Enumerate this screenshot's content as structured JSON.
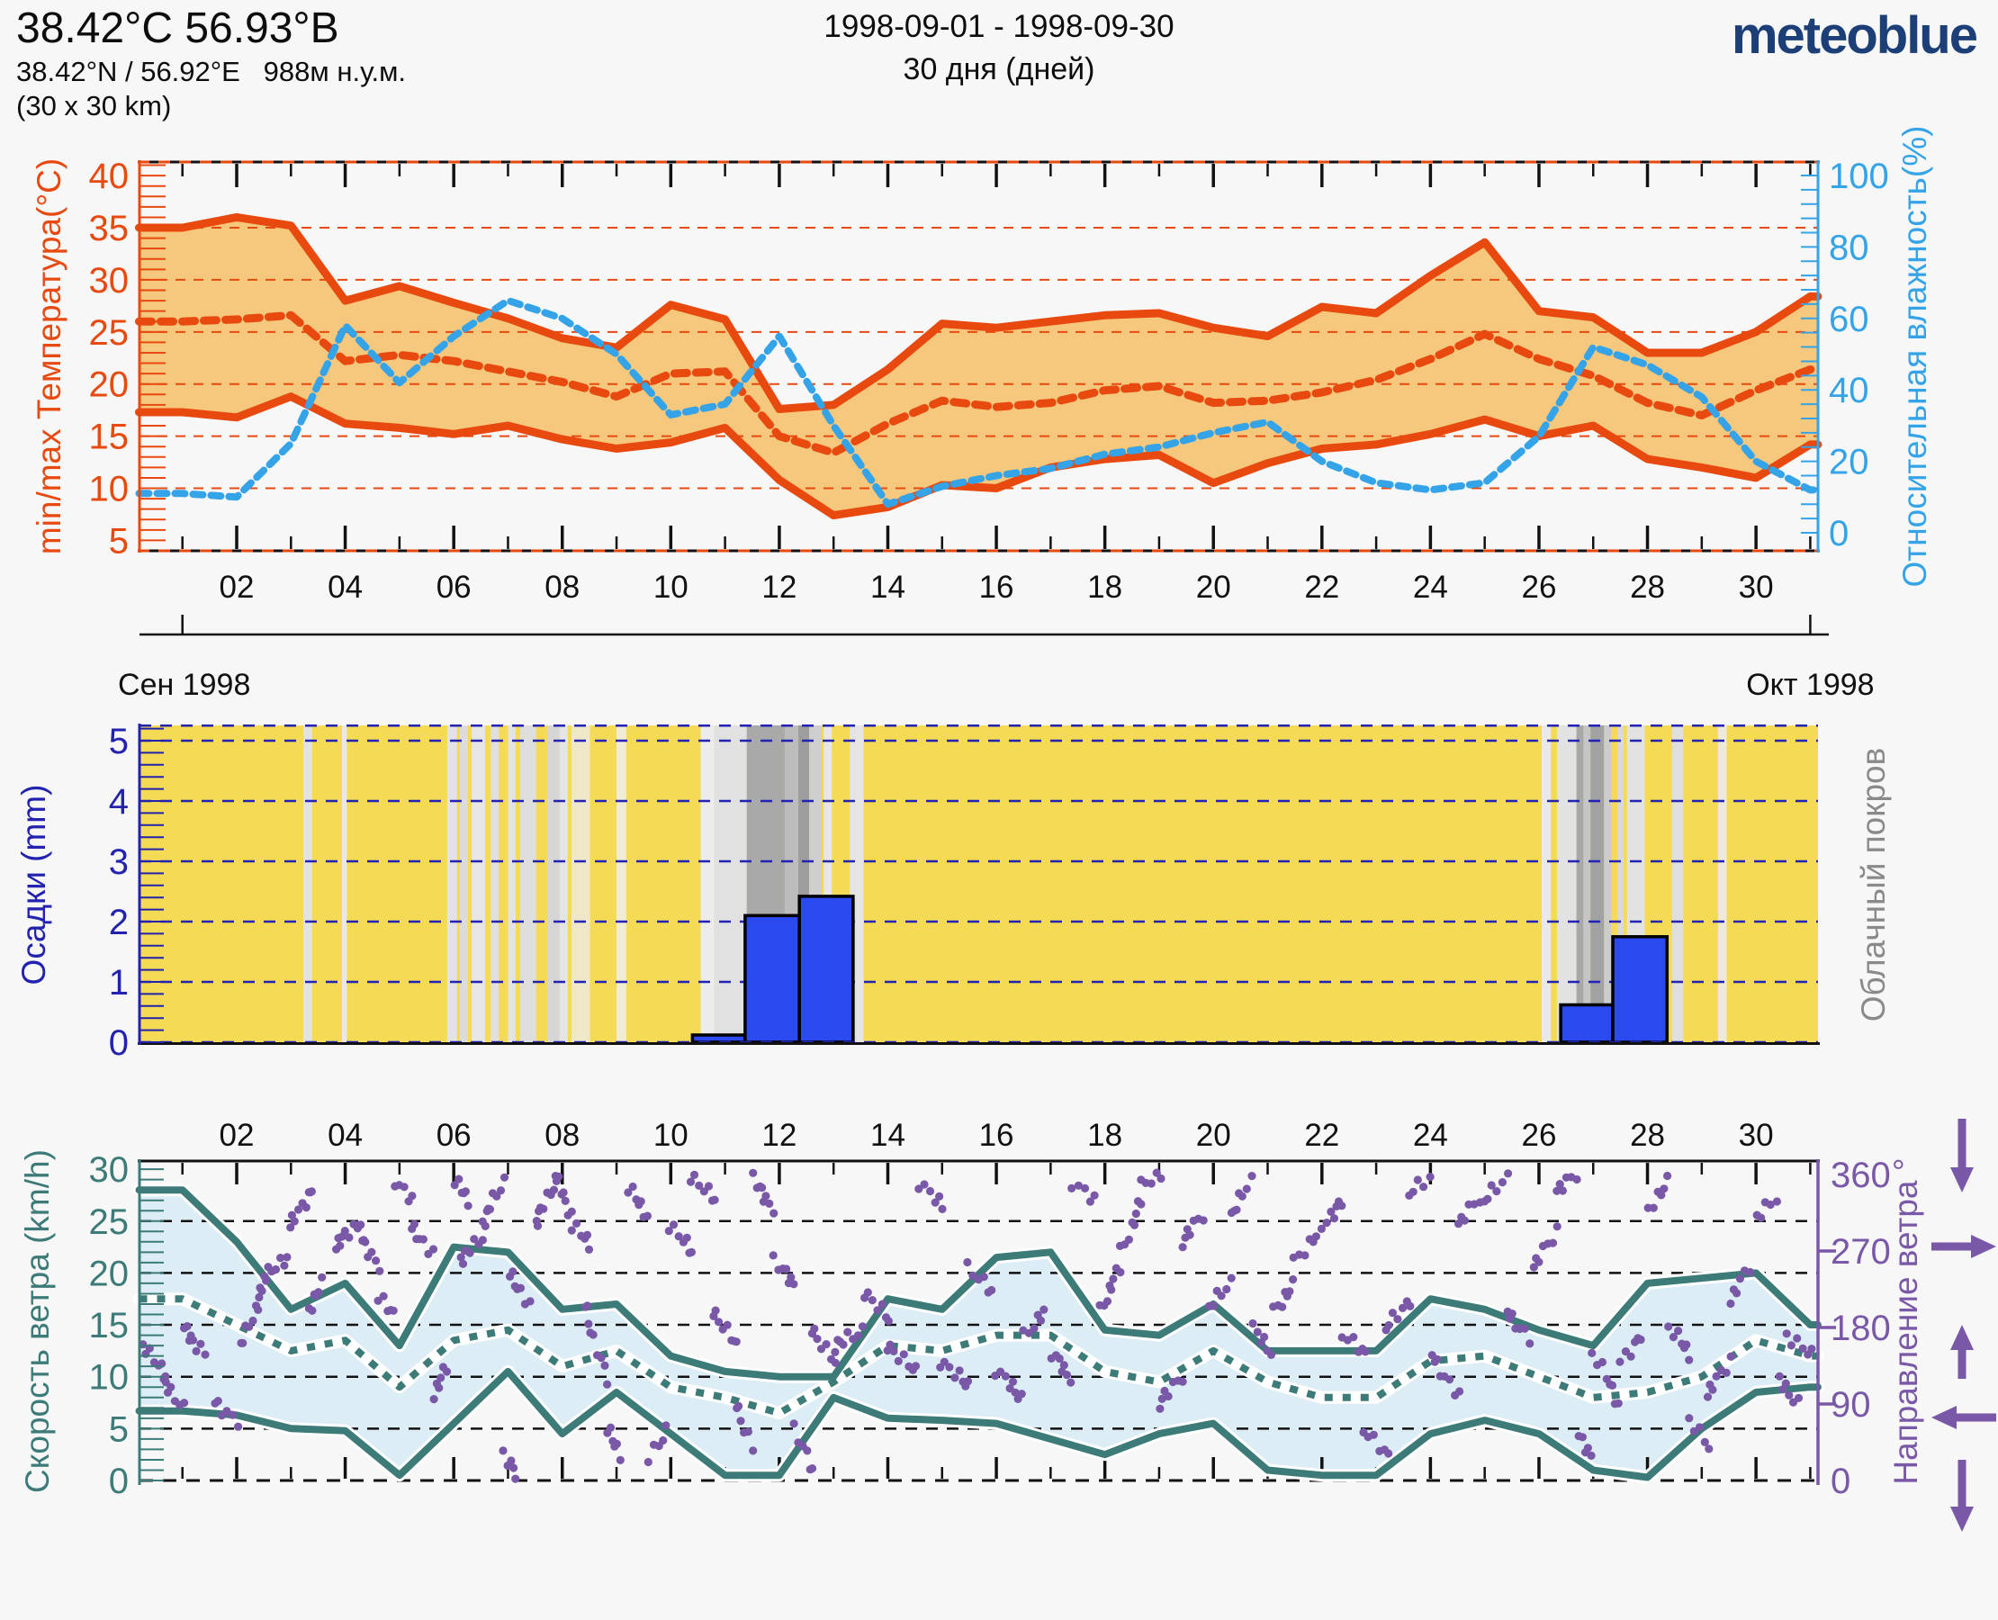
{
  "header": {
    "title": "38.42°C 56.93°B",
    "subtitle": "38.42°N / 56.92°E   988м н.у.м.",
    "area": "(30 x 30 km)",
    "date_range": "1998-09-01 - 1998-09-30",
    "duration": "30 дня (дней)",
    "logo": "meteoblue"
  },
  "colors": {
    "background": "#f7f7f7",
    "temperature": "#e8490f",
    "temperature_fill": "#f6c87d",
    "humidity": "#35a3e8",
    "precipitation_bar": "#2b4af0",
    "precipitation_axis": "#2222ae",
    "cloud_background": "#f5da55",
    "cloud_label": "#8a8a8a",
    "wind": "#3d7b78",
    "wind_fill": "#ddedf6",
    "wind_direction": "#7a58a8",
    "axis_black": "#111111",
    "logo_blue": "#1d3f77"
  },
  "x_axis": {
    "tick_days": [
      2,
      4,
      6,
      8,
      10,
      12,
      14,
      16,
      18,
      20,
      22,
      24,
      26,
      28,
      30
    ],
    "day_labels": [
      "02",
      "04",
      "06",
      "08",
      "10",
      "12",
      "14",
      "16",
      "18",
      "20",
      "22",
      "24",
      "26",
      "28",
      "30"
    ],
    "month_start": "Сен 1998",
    "month_end": "Окт 1998"
  },
  "chart_data": [
    {
      "type": "area",
      "title": "min/max temperature and relative humidity",
      "x": [
        1,
        2,
        3,
        4,
        5,
        6,
        7,
        8,
        9,
        10,
        11,
        12,
        13,
        14,
        15,
        16,
        17,
        18,
        19,
        20,
        21,
        22,
        23,
        24,
        25,
        26,
        27,
        28,
        29,
        30,
        31
      ],
      "series": [
        {
          "name": "temperature_max_C",
          "values": [
            35,
            36,
            35.2,
            28,
            29.4,
            27.8,
            26.3,
            24.4,
            23.5,
            27.6,
            26.2,
            17.6,
            18,
            21.4,
            25.8,
            25.4,
            26,
            26.6,
            26.8,
            25.4,
            24.6,
            27.4,
            26.8,
            30.4,
            33.6,
            27,
            26.4,
            23,
            23,
            25,
            28.4
          ]
        },
        {
          "name": "temperature_min_C",
          "values": [
            17.3,
            16.8,
            18.8,
            16.2,
            15.8,
            15.2,
            16,
            14.7,
            13.8,
            14.4,
            15.8,
            10.8,
            7.4,
            8.2,
            10.3,
            10,
            12,
            12.8,
            13.2,
            10.5,
            12.4,
            13.8,
            14.2,
            15.2,
            16.6,
            15,
            16,
            12.8,
            12,
            11,
            14.2
          ]
        },
        {
          "name": "temperature_mean_C",
          "values": [
            26,
            26.2,
            26.6,
            22.2,
            22.8,
            22.2,
            21.2,
            20.2,
            18.8,
            21,
            21.2,
            15,
            13.4,
            16.2,
            18.4,
            17.8,
            18.2,
            19.4,
            19.8,
            18.2,
            18.4,
            19.2,
            20.4,
            22.4,
            24.8,
            22.4,
            20.8,
            18.2,
            17,
            19.4,
            21.4
          ]
        },
        {
          "name": "relative_humidity_pct",
          "values": [
            11,
            10,
            25,
            58,
            42,
            55,
            65,
            60,
            50,
            33,
            36,
            55,
            30,
            8,
            13,
            16,
            18,
            22,
            24,
            28,
            31,
            20,
            14,
            12,
            14,
            27,
            52,
            47,
            38,
            20,
            12
          ]
        }
      ],
      "ylabel_left": "min/max Температура(°C)",
      "yticks_left": [
        5,
        10,
        15,
        20,
        25,
        30,
        35,
        40
      ],
      "ylim_left": [
        4,
        41.3
      ],
      "ylabel_right": "Относительная влажность(%)",
      "yticks_right": [
        0,
        20,
        40,
        60,
        80,
        100
      ],
      "ylim_right": [
        -5,
        106
      ],
      "grid": "dashed horizontal every 5°C"
    },
    {
      "type": "bar",
      "title": "precipitation and cloud cover",
      "ylabel_left": "Осадки (mm)",
      "yticks_left": [
        0,
        1,
        2,
        3,
        4,
        5
      ],
      "ylim_left": [
        0,
        5.3
      ],
      "ylabel_right": "Облачный покров",
      "bars": [
        {
          "from_day": 10.4,
          "to_day": 11.37,
          "mm": 0.12
        },
        {
          "from_day": 11.37,
          "to_day": 12.37,
          "mm": 2.1
        },
        {
          "from_day": 12.37,
          "to_day": 13.36,
          "mm": 2.42
        },
        {
          "from_day": 26.4,
          "to_day": 27.36,
          "mm": 0.62
        },
        {
          "from_day": 27.36,
          "to_day": 28.36,
          "mm": 1.75
        }
      ],
      "cloud_stripes": [
        {
          "from_day": 3.23,
          "to_day": 3.39,
          "color": "#e2e2e2"
        },
        {
          "from_day": 3.94,
          "to_day": 4.03,
          "color": "#e9e9e9"
        },
        {
          "from_day": 5.88,
          "to_day": 6.06,
          "color": "#e3e3e3"
        },
        {
          "from_day": 6.11,
          "to_day": 6.26,
          "color": "#dcdcdc"
        },
        {
          "from_day": 6.33,
          "to_day": 6.58,
          "color": "#e6e6e6"
        },
        {
          "from_day": 6.68,
          "to_day": 6.83,
          "color": "#e0e0e0"
        },
        {
          "from_day": 7.0,
          "to_day": 7.14,
          "color": "#e3e3e3"
        },
        {
          "from_day": 7.22,
          "to_day": 7.52,
          "color": "#dedede"
        },
        {
          "from_day": 7.72,
          "to_day": 7.95,
          "color": "#d6d6d6"
        },
        {
          "from_day": 7.95,
          "to_day": 8.1,
          "color": "#e5e5e5"
        },
        {
          "from_day": 8.17,
          "to_day": 8.51,
          "color": "#efe8c8"
        },
        {
          "from_day": 9.0,
          "to_day": 9.18,
          "color": "#f1ecd6"
        },
        {
          "from_day": 10.55,
          "to_day": 10.8,
          "color": "#ececec"
        },
        {
          "from_day": 10.8,
          "to_day": 11.4,
          "color": "#e1e1e1"
        },
        {
          "from_day": 11.4,
          "to_day": 12.1,
          "color": "#a9a9a9"
        },
        {
          "from_day": 12.1,
          "to_day": 12.35,
          "color": "#bcbcbc"
        },
        {
          "from_day": 12.35,
          "to_day": 12.55,
          "color": "#9e9e9e"
        },
        {
          "from_day": 12.55,
          "to_day": 12.78,
          "color": "#cfcfcf"
        },
        {
          "from_day": 12.82,
          "to_day": 12.97,
          "color": "#e7e7e7"
        },
        {
          "from_day": 13.3,
          "to_day": 13.55,
          "color": "#e5e5e5"
        },
        {
          "from_day": 26.05,
          "to_day": 26.22,
          "color": "#e9e9e9"
        },
        {
          "from_day": 26.33,
          "to_day": 26.69,
          "color": "#e2e2e2"
        },
        {
          "from_day": 26.69,
          "to_day": 26.82,
          "color": "#a8a8a8"
        },
        {
          "from_day": 26.82,
          "to_day": 26.95,
          "color": "#c6c6c6"
        },
        {
          "from_day": 26.95,
          "to_day": 27.2,
          "color": "#a2a2a2"
        },
        {
          "from_day": 27.2,
          "to_day": 27.33,
          "color": "#cccccc"
        },
        {
          "from_day": 27.45,
          "to_day": 27.56,
          "color": "#d9d9d9"
        },
        {
          "from_day": 27.62,
          "to_day": 27.95,
          "color": "#e2e2e2"
        },
        {
          "from_day": 28.45,
          "to_day": 28.66,
          "color": "#dfdfdf"
        },
        {
          "from_day": 29.3,
          "to_day": 29.46,
          "color": "#eeeada"
        }
      ]
    },
    {
      "type": "area+scatter",
      "title": "wind speed and wind direction",
      "x": [
        1,
        2,
        3,
        4,
        5,
        6,
        7,
        8,
        9,
        10,
        11,
        12,
        13,
        14,
        15,
        16,
        17,
        18,
        19,
        20,
        21,
        22,
        23,
        24,
        25,
        26,
        27,
        28,
        29,
        30,
        31
      ],
      "series": [
        {
          "name": "wind_speed_max_kmh",
          "values": [
            28,
            23,
            16.5,
            19,
            13,
            22.5,
            22,
            16.5,
            17,
            12,
            10.5,
            10,
            10,
            17.5,
            16.5,
            21.5,
            22,
            14.5,
            14,
            17,
            12.5,
            12.5,
            12.5,
            17.5,
            16.5,
            14.5,
            13,
            19,
            19.5,
            20,
            15
          ]
        },
        {
          "name": "wind_speed_min_kmh",
          "values": [
            6.7,
            6.3,
            5,
            4.8,
            0.5,
            5.5,
            10.5,
            4.5,
            8.5,
            4.5,
            0.5,
            0.5,
            8,
            6,
            5.8,
            5.5,
            4,
            2.5,
            4.5,
            5.5,
            1,
            0.5,
            0.5,
            4.5,
            5.8,
            4.5,
            1,
            0.3,
            5,
            8.5,
            9
          ]
        },
        {
          "name": "wind_speed_mean_kmh",
          "values": [
            17.5,
            15,
            12.5,
            13.5,
            9,
            13.5,
            14.5,
            11,
            12.5,
            9,
            8,
            6.5,
            9.5,
            13,
            12.5,
            14,
            14,
            10.5,
            9.5,
            12.5,
            9.5,
            8,
            8,
            11.5,
            12,
            10,
            8,
            8.5,
            10,
            13.5,
            12
          ]
        }
      ],
      "ylabel_left": "Скорость ветра (km/h)",
      "yticks_left": [
        0,
        5,
        10,
        15,
        20,
        25,
        30
      ],
      "ylim_left": [
        0,
        30.8
      ],
      "ylabel_right": "Направление ветра °",
      "yticks_right": [
        0,
        90,
        180,
        270,
        360
      ],
      "direction_arrows": [
        {
          "deg": 360,
          "pointing": "down"
        },
        {
          "deg": 270,
          "pointing": "right"
        },
        {
          "deg": 180,
          "pointing": "up"
        },
        {
          "deg": 90,
          "pointing": "left"
        },
        {
          "deg": 0,
          "pointing": "down"
        }
      ],
      "direction_streaks": [
        [
          0.3,
          0.7,
          160,
          120,
          8
        ],
        [
          0.7,
          1.0,
          115,
          85,
          6
        ],
        [
          1.0,
          1.4,
          180,
          150,
          8
        ],
        [
          1.6,
          2.0,
          92,
          70,
          6
        ],
        [
          2.1,
          2.5,
          160,
          230,
          10
        ],
        [
          2.5,
          2.9,
          238,
          262,
          8
        ],
        [
          3.0,
          3.4,
          300,
          345,
          9
        ],
        [
          3.3,
          3.6,
          200,
          232,
          6
        ],
        [
          3.8,
          4.2,
          275,
          300,
          8
        ],
        [
          4.2,
          4.6,
          300,
          252,
          9
        ],
        [
          4.6,
          4.9,
          215,
          195,
          5
        ],
        [
          4.95,
          5.2,
          352,
          330,
          5
        ],
        [
          5.2,
          5.6,
          300,
          268,
          7
        ],
        [
          5.6,
          5.9,
          100,
          135,
          6
        ],
        [
          6.0,
          6.3,
          352,
          330,
          6
        ],
        [
          6.1,
          6.5,
          258,
          285,
          8
        ],
        [
          6.5,
          6.9,
          300,
          350,
          9
        ],
        [
          6.9,
          7.15,
          30,
          8,
          5
        ],
        [
          7.0,
          7.4,
          245,
          208,
          7
        ],
        [
          7.5,
          7.9,
          300,
          358,
          10
        ],
        [
          7.9,
          8.2,
          352,
          310,
          6
        ],
        [
          8.2,
          8.5,
          300,
          278,
          6
        ],
        [
          8.4,
          8.8,
          210,
          120,
          9
        ],
        [
          8.8,
          9.1,
          62,
          30,
          6
        ],
        [
          9.2,
          9.6,
          345,
          310,
          7
        ],
        [
          9.6,
          9.9,
          28,
          58,
          5
        ],
        [
          10.0,
          10.4,
          300,
          268,
          7
        ],
        [
          10.4,
          10.8,
          358,
          330,
          7
        ],
        [
          10.8,
          11.2,
          200,
          158,
          8
        ],
        [
          11.2,
          11.5,
          92,
          40,
          6
        ],
        [
          11.5,
          11.9,
          355,
          320,
          8
        ],
        [
          11.9,
          12.3,
          258,
          230,
          7
        ],
        [
          12.3,
          12.6,
          60,
          10,
          6
        ],
        [
          12.6,
          13.0,
          180,
          140,
          7
        ],
        [
          13.0,
          13.5,
          158,
          175,
          8
        ],
        [
          13.6,
          14.0,
          222,
          190,
          7
        ],
        [
          14.0,
          14.5,
          160,
          128,
          8
        ],
        [
          14.6,
          15.0,
          350,
          322,
          6
        ],
        [
          15.0,
          15.5,
          140,
          110,
          8
        ],
        [
          15.5,
          15.9,
          250,
          222,
          6
        ],
        [
          16.0,
          16.5,
          130,
          95,
          8
        ],
        [
          16.5,
          16.9,
          170,
          200,
          6
        ],
        [
          17.0,
          17.4,
          150,
          120,
          7
        ],
        [
          17.4,
          17.8,
          350,
          330,
          5
        ],
        [
          17.9,
          18.3,
          200,
          252,
          8
        ],
        [
          18.3,
          18.7,
          270,
          332,
          8
        ],
        [
          18.7,
          19.0,
          348,
          360,
          5
        ],
        [
          19.0,
          19.4,
          90,
          122,
          7
        ],
        [
          19.4,
          19.8,
          280,
          312,
          7
        ],
        [
          19.9,
          20.3,
          200,
          232,
          7
        ],
        [
          20.3,
          20.7,
          310,
          352,
          7
        ],
        [
          20.7,
          21.1,
          180,
          150,
          6
        ],
        [
          21.1,
          21.5,
          200,
          230,
          7
        ],
        [
          21.5,
          21.9,
          258,
          290,
          6
        ],
        [
          22.0,
          22.4,
          300,
          330,
          7
        ],
        [
          22.4,
          22.8,
          172,
          148,
          6
        ],
        [
          22.8,
          23.2,
          60,
          28,
          6
        ],
        [
          23.2,
          23.6,
          180,
          212,
          7
        ],
        [
          23.6,
          24.0,
          338,
          356,
          5
        ],
        [
          24.0,
          24.5,
          150,
          100,
          8
        ],
        [
          24.5,
          24.9,
          300,
          332,
          6
        ],
        [
          25.0,
          25.4,
          330,
          356,
          6
        ],
        [
          25.4,
          25.8,
          200,
          168,
          7
        ],
        [
          25.9,
          26.3,
          250,
          292,
          7
        ],
        [
          26.3,
          26.7,
          340,
          360,
          6
        ],
        [
          26.7,
          27.0,
          52,
          28,
          5
        ],
        [
          27.0,
          27.5,
          150,
          88,
          8
        ],
        [
          27.5,
          27.9,
          140,
          172,
          6
        ],
        [
          28.0,
          28.4,
          320,
          352,
          6
        ],
        [
          28.4,
          28.8,
          180,
          148,
          7
        ],
        [
          28.8,
          29.1,
          72,
          40,
          5
        ],
        [
          29.1,
          29.5,
          100,
          140,
          7
        ],
        [
          29.5,
          29.9,
          210,
          252,
          6
        ],
        [
          30.0,
          30.4,
          310,
          332,
          5
        ],
        [
          30.4,
          30.8,
          120,
          90,
          6
        ],
        [
          30.6,
          31.0,
          170,
          148,
          6
        ]
      ]
    }
  ]
}
